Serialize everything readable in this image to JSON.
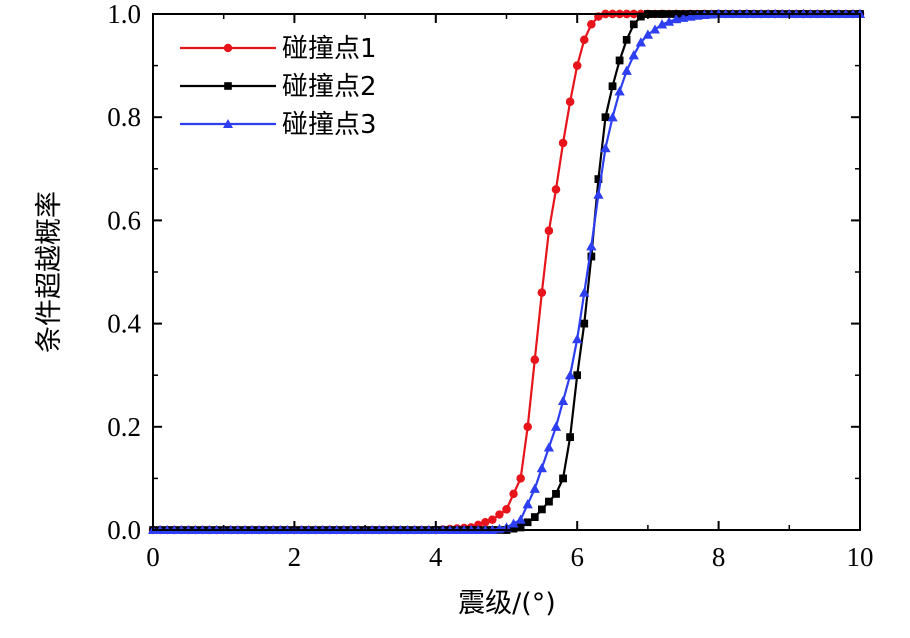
{
  "chart_data": {
    "type": "line",
    "title": "",
    "xlabel": "震级/(°)",
    "ylabel": "条件超越概率",
    "xlim": [
      0,
      10
    ],
    "ylim": [
      0,
      1.0
    ],
    "x_ticks": [
      "0",
      "2",
      "4",
      "6",
      "8",
      "10"
    ],
    "y_ticks": [
      "0.0",
      "0.2",
      "0.4",
      "0.6",
      "0.8",
      "1.0"
    ],
    "legend_position": "top-left",
    "grid": false,
    "x": [
      4.0,
      4.5,
      4.8,
      5.0,
      5.2,
      5.3,
      5.4,
      5.5,
      5.6,
      5.7,
      5.8,
      5.9,
      6.0,
      6.1,
      6.2,
      6.3,
      6.4,
      6.5,
      6.6,
      6.7,
      6.8,
      6.9,
      7.0,
      7.2,
      7.4,
      7.6,
      7.8,
      8.0,
      8.4,
      8.8,
      9.2,
      10.0
    ],
    "series": [
      {
        "name": "碰撞点1",
        "color": "#e8141b",
        "marker": "circle",
        "values": [
          0.0,
          0.005,
          0.02,
          0.04,
          0.1,
          0.2,
          0.33,
          0.46,
          0.58,
          0.66,
          0.75,
          0.83,
          0.9,
          0.95,
          0.98,
          0.995,
          1.0,
          1.0,
          1.0,
          1.0,
          1.0,
          1.0,
          1.0,
          1.0,
          1.0,
          1.0,
          1.0,
          1.0,
          1.0,
          1.0,
          1.0,
          1.0
        ]
      },
      {
        "name": "碰撞点2",
        "color": "#000000",
        "marker": "square",
        "values": [
          0.0,
          0.0,
          0.0,
          0.0,
          0.005,
          0.015,
          0.025,
          0.04,
          0.055,
          0.07,
          0.1,
          0.18,
          0.3,
          0.4,
          0.53,
          0.68,
          0.8,
          0.86,
          0.91,
          0.95,
          0.98,
          0.995,
          1.0,
          1.0,
          1.0,
          1.0,
          1.0,
          1.0,
          1.0,
          1.0,
          1.0,
          1.0
        ]
      },
      {
        "name": "碰撞点3",
        "color": "#2d3ff0",
        "marker": "triangle",
        "values": [
          0.0,
          0.0,
          0.0,
          0.005,
          0.02,
          0.05,
          0.08,
          0.12,
          0.16,
          0.2,
          0.25,
          0.3,
          0.37,
          0.46,
          0.55,
          0.65,
          0.74,
          0.8,
          0.85,
          0.89,
          0.92,
          0.945,
          0.96,
          0.98,
          0.99,
          0.995,
          0.998,
          1.0,
          1.0,
          1.0,
          1.0,
          1.0
        ]
      }
    ]
  }
}
